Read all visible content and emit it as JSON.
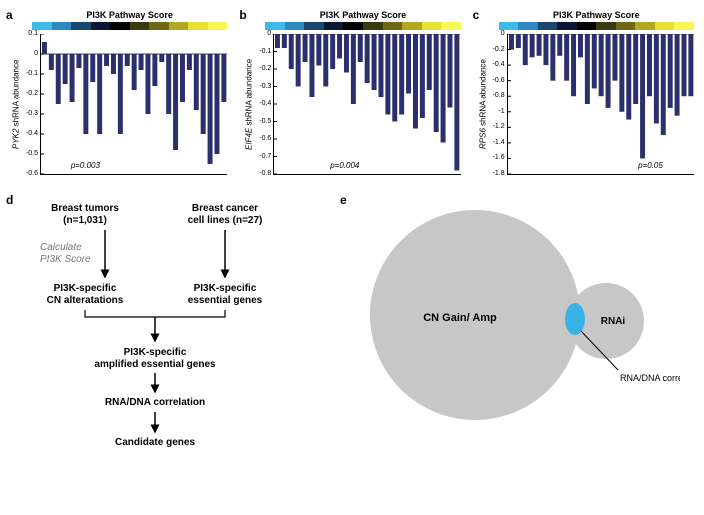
{
  "panels": {
    "a": {
      "letter": "a",
      "title": "PI3K Pathway Score",
      "ylabel_gene": "PYK2",
      "ylabel_rest": " shRNA abundance",
      "pval": "p=0.003",
      "pval_left_pct": 16,
      "ylim": [
        -0.6,
        0.1
      ],
      "yticks": [
        0.1,
        0,
        -0.1,
        -0.2,
        -0.3,
        -0.4,
        -0.5,
        -0.6
      ],
      "bar_color": "#2b2f6b",
      "bars": [
        0.06,
        -0.08,
        -0.25,
        -0.15,
        -0.24,
        -0.07,
        -0.4,
        -0.14,
        -0.4,
        -0.06,
        -0.1,
        -0.4,
        -0.06,
        -0.18,
        -0.08,
        -0.3,
        -0.16,
        -0.04,
        -0.3,
        -0.48,
        -0.24,
        -0.08,
        -0.28,
        -0.4,
        -0.55,
        -0.5,
        -0.24
      ]
    },
    "b": {
      "letter": "b",
      "title": "PI3K Pathway Score",
      "ylabel_gene": "EIF4E",
      "ylabel_rest": " shRNA abundance",
      "pval": "p=0.004",
      "pval_left_pct": 30,
      "ylim": [
        -0.8,
        0
      ],
      "yticks": [
        0,
        -0.1,
        -0.2,
        -0.3,
        -0.4,
        -0.5,
        -0.6,
        -0.7,
        -0.8
      ],
      "bar_color": "#2b2f6b",
      "bars": [
        -0.08,
        -0.08,
        -0.2,
        -0.3,
        -0.16,
        -0.36,
        -0.18,
        -0.3,
        -0.2,
        -0.14,
        -0.22,
        -0.4,
        -0.16,
        -0.28,
        -0.32,
        -0.36,
        -0.46,
        -0.5,
        -0.46,
        -0.34,
        -0.54,
        -0.48,
        -0.32,
        -0.56,
        -0.62,
        -0.42,
        -0.78
      ]
    },
    "c": {
      "letter": "c",
      "title": "PI3K Pathway Score",
      "ylabel_gene": "RPS6",
      "ylabel_rest": " shRNA abundance",
      "pval": "p=0.05",
      "pval_left_pct": 70,
      "ylim": [
        -1.8,
        0
      ],
      "yticks": [
        0,
        -0.2,
        -0.4,
        -0.6,
        -0.8,
        -1.0,
        -1.2,
        -1.4,
        -1.6,
        -1.8
      ],
      "bar_color": "#2b2f6b",
      "bars": [
        -0.2,
        -0.18,
        -0.4,
        -0.3,
        -0.28,
        -0.4,
        -0.6,
        -0.28,
        -0.6,
        -0.8,
        -0.3,
        -0.9,
        -0.7,
        -0.8,
        -0.95,
        -0.6,
        -1.0,
        -1.1,
        -0.9,
        -1.6,
        -0.8,
        -1.15,
        -1.3,
        -0.95,
        -1.05,
        -0.8,
        -0.8
      ]
    }
  },
  "colorbar_stops": [
    "#3fb8ea",
    "#2a8abf",
    "#1a4770",
    "#0c1830",
    "#000000",
    "#3a3a10",
    "#706818",
    "#b0aa22",
    "#e6e233",
    "#f7f756"
  ],
  "flowchart": {
    "letter": "d",
    "top_left": "Breast tumors\n(n=1,031)",
    "top_right": "Breast cancer\ncell lines (n=27)",
    "calc_label": "Calculate\nPI3K Score",
    "mid_left": "PI3K-specific\nCN alteratations",
    "mid_right": "PI3K-specific\nessential genes",
    "merge": "PI3K-specific\namplified essential genes",
    "rnadna": "RNA/DNA correlation",
    "candidates": "Candidate genes"
  },
  "venn": {
    "letter": "e",
    "big_label": "CN Gain/ Amp",
    "small_label": "RNAi",
    "overlap_label": "RNA/DNA correlation",
    "big_fill": "#c7c7c7",
    "small_fill": "#c7c7c7",
    "overlap_fill": "#39b3e6"
  }
}
